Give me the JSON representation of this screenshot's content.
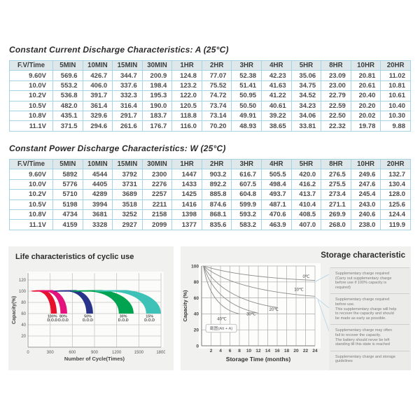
{
  "sections": {
    "current": {
      "title": "Constant Current Discharge Characteristics: A (25°C)"
    },
    "power": {
      "title": "Constant Power Discharge Characteristics: W (25°C)"
    }
  },
  "table_headers": [
    "F.V/Time",
    "5MIN",
    "10MIN",
    "15MIN",
    "30MIN",
    "1HR",
    "2HR",
    "3HR",
    "4HR",
    "5HR",
    "8HR",
    "10HR",
    "20HR"
  ],
  "current_table_rows": [
    [
      "9.60V",
      "569.6",
      "426.7",
      "344.7",
      "200.9",
      "124.8",
      "77.07",
      "52.38",
      "42.23",
      "35.06",
      "23.09",
      "20.81",
      "11.02"
    ],
    [
      "10.0V",
      "553.2",
      "406.0",
      "337.6",
      "198.4",
      "123.2",
      "75.52",
      "51.41",
      "41.63",
      "34.75",
      "23.00",
      "20.61",
      "10.81"
    ],
    [
      "10.2V",
      "536.8",
      "391.7",
      "332.3",
      "195.3",
      "122.0",
      "74.72",
      "50.95",
      "41.22",
      "34.52",
      "22.79",
      "20.40",
      "10.61"
    ],
    [
      "10.5V",
      "482.0",
      "361.4",
      "316.4",
      "190.0",
      "120.5",
      "73.74",
      "50.50",
      "40.61",
      "34.23",
      "22.59",
      "20.20",
      "10.40"
    ],
    [
      "10.8V",
      "435.1",
      "329.6",
      "291.7",
      "183.7",
      "118.8",
      "73.14",
      "49.91",
      "39.22",
      "34.06",
      "22.50",
      "20.02",
      "10.30"
    ],
    [
      "11.1V",
      "371.5",
      "294.6",
      "261.6",
      "176.7",
      "116.0",
      "70.20",
      "48.93",
      "38.65",
      "33.81",
      "22.32",
      "19.78",
      "9.88"
    ]
  ],
  "power_table_rows": [
    [
      "9.60V",
      "5892",
      "4544",
      "3792",
      "2300",
      "1447",
      "903.2",
      "616.7",
      "505.5",
      "420.0",
      "276.5",
      "249.6",
      "132.7"
    ],
    [
      "10.0V",
      "5776",
      "4405",
      "3731",
      "2276",
      "1433",
      "892.2",
      "607.5",
      "498.4",
      "416.2",
      "275.5",
      "247.6",
      "130.4"
    ],
    [
      "10.2V",
      "5710",
      "4289",
      "3689",
      "2257",
      "1425",
      "885.8",
      "604.8",
      "493.7",
      "413.7",
      "273.4",
      "245.4",
      "128.0"
    ],
    [
      "10.5V",
      "5198",
      "3994",
      "3518",
      "2211",
      "1416",
      "874.6",
      "599.9",
      "487.1",
      "410.4",
      "271.1",
      "243.0",
      "125.6"
    ],
    [
      "10.8V",
      "4734",
      "3681",
      "3252",
      "2158",
      "1398",
      "868.1",
      "593.2",
      "470.6",
      "408.5",
      "269.9",
      "240.6",
      "124.4"
    ],
    [
      "11.1V",
      "4159",
      "3328",
      "2927",
      "2099",
      "1377",
      "835.6",
      "583.2",
      "463.9",
      "407.0",
      "268.0",
      "238.0",
      "119.9"
    ]
  ],
  "chart_data": [
    {
      "type": "area",
      "title": "Life characteristics of cyclic use",
      "xlabel": "Number of Cycle(Times)",
      "ylabel": "Capacity(%)",
      "xlim": [
        0,
        1800
      ],
      "ylim": [
        0,
        130
      ],
      "x_ticks": [
        0,
        300,
        600,
        900,
        1200,
        1500,
        1800
      ],
      "y_ticks": [
        20,
        40,
        60,
        80,
        100,
        120
      ],
      "grid": true,
      "series": [
        {
          "label": "100%",
          "sublabel": "D.O.D",
          "color": "#e8112d",
          "start_capacity": 100,
          "end_capacity": 60,
          "tip": 40,
          "bend_lo": 150,
          "end_lo": 310,
          "bend_hi": 220,
          "end_hi": 390,
          "label_at": 330
        },
        {
          "label": "80%",
          "sublabel": "D.O.D",
          "color": "#e5127d",
          "start_capacity": 100,
          "end_capacity": 60,
          "tip": 130,
          "bend_lo": 260,
          "end_lo": 440,
          "bend_hi": 330,
          "end_hi": 530,
          "label_at": 478
        },
        {
          "label": "50%",
          "sublabel": "D.O.D",
          "color": "#28348a",
          "start_capacity": 100,
          "end_capacity": 60,
          "tip": 340,
          "bend_lo": 560,
          "end_lo": 790,
          "bend_hi": 650,
          "end_hi": 880,
          "label_at": 810
        },
        {
          "label": "30%",
          "sublabel": "D.O.D",
          "color": "#00a350",
          "start_capacity": 100,
          "end_capacity": 60,
          "tip": 580,
          "bend_lo": 850,
          "end_lo": 1230,
          "bend_hi": 1000,
          "end_hi": 1430,
          "label_at": 1290
        },
        {
          "label": "15%",
          "sublabel": "D.O.D",
          "color": "#3ec1b6",
          "start_capacity": 100,
          "end_capacity": 60,
          "tip": 900,
          "bend_lo": 1150,
          "end_lo": 1600,
          "bend_hi": 1330,
          "end_hi": 1800,
          "label_at": 1645
        }
      ]
    },
    {
      "type": "line",
      "title": "Storage characteristic",
      "xlabel": "Storage Time (months)",
      "ylabel": "Capacity  (%)",
      "xlim": [
        0,
        24.5
      ],
      "ylim": [
        0,
        100
      ],
      "x_ticks": [
        2,
        4,
        6,
        8,
        10,
        12,
        14,
        16,
        18,
        20,
        22,
        24
      ],
      "y_ticks": [
        0,
        20,
        40,
        60,
        80,
        100
      ],
      "grid": true,
      "series": [
        {
          "name": "0℃",
          "start": [
            0.4,
            100
          ],
          "ctrl": [
            8,
            86
          ],
          "end": [
            24,
            82
          ],
          "label_pos": [
            21.4,
            85
          ]
        },
        {
          "name": "10℃",
          "start": [
            0.4,
            100
          ],
          "ctrl": [
            6.5,
            70
          ],
          "end": [
            24,
            62
          ],
          "label_pos": [
            19.6,
            69
          ]
        },
        {
          "name": "20℃",
          "start": [
            0.4,
            100
          ],
          "ctrl": [
            4.5,
            58
          ],
          "end": [
            16,
            48
          ],
          "label_pos": [
            14.3,
            44
          ]
        },
        {
          "name": "30℃",
          "start": [
            0.4,
            100
          ],
          "ctrl": [
            3.0,
            52
          ],
          "end": [
            12,
            41
          ],
          "label_pos": [
            9.5,
            38
          ]
        },
        {
          "name": "40℃",
          "start": [
            0.4,
            100
          ],
          "ctrl": [
            1.8,
            48
          ],
          "end": [
            8,
            40
          ],
          "label_pos": [
            3.3,
            32
          ]
        }
      ]
    }
  ],
  "storage_notes": [
    "Supplementary charge required\n(Carry out supplementary charge\nbefore use if 100% capacity is\nrequired)",
    "Supplementary charge required\nbefore use.\nThis supplementary charge will help\nto recover the capacity and should\nbe made  as early as possible.",
    "Supplementary charge may often\nfail to recover the capacity.\nThe battery should never be left\nstanding till this state is reached",
    "Supplementary charge and storage\nguidelines"
  ],
  "overlay": {
    "label": "截图(Alt + A)"
  }
}
